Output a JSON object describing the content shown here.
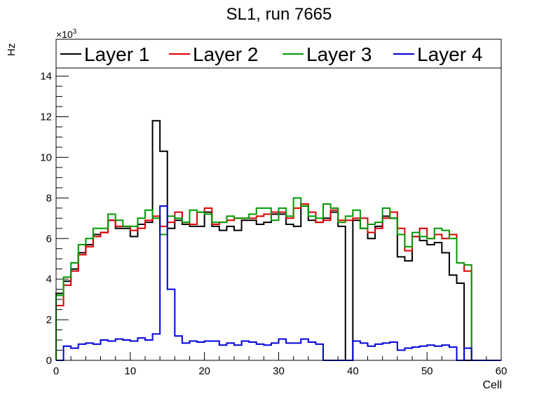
{
  "chart_data": {
    "type": "line",
    "style": "step-histogram",
    "title": "SL1, run 7665",
    "xlabel": "Cell",
    "ylabel": "Hz",
    "y_multiplier_label": "×10",
    "y_multiplier_exp": "3",
    "xlim": [
      0,
      60
    ],
    "ylim": [
      0,
      14.4
    ],
    "y_units": "thousands of Hz",
    "x_ticks": [
      "0",
      "10",
      "20",
      "30",
      "40",
      "50",
      "60"
    ],
    "y_ticks": [
      "0",
      "2",
      "4",
      "6",
      "8",
      "10",
      "12",
      "14"
    ],
    "grid": false,
    "legend_position": "top",
    "series": [
      {
        "name": "Layer 1",
        "color": "#000000",
        "values": [
          3.3,
          3.9,
          4.5,
          5.3,
          5.7,
          6.2,
          6.3,
          6.9,
          6.5,
          6.5,
          6.1,
          6.7,
          6.8,
          11.8,
          10.3,
          6.5,
          6.9,
          6.7,
          6.6,
          6.6,
          7.3,
          6.6,
          6.4,
          6.6,
          6.4,
          6.9,
          6.9,
          6.7,
          6.8,
          7.2,
          7.2,
          6.7,
          6.6,
          7.6,
          6.9,
          6.8,
          7.0,
          7.3,
          6.6,
          0,
          6.9,
          6.5,
          6.0,
          6.6,
          7.1,
          7.0,
          5.1,
          4.9,
          6.1,
          5.9,
          5.7,
          5.8,
          5.3,
          4.2,
          3.8,
          0,
          0,
          0,
          0,
          0
        ]
      },
      {
        "name": "Layer 2",
        "color": "#dd0000",
        "values": [
          2.7,
          3.7,
          4.4,
          5.2,
          5.6,
          6.1,
          6.3,
          6.9,
          6.6,
          6.6,
          6.4,
          6.5,
          6.9,
          7.1,
          6.6,
          6.8,
          7.3,
          6.8,
          6.7,
          7.3,
          7.5,
          6.7,
          6.8,
          6.9,
          7.0,
          7.0,
          7.0,
          7.1,
          7.2,
          7.3,
          7.3,
          7.0,
          7.5,
          7.7,
          7.3,
          6.8,
          6.9,
          7.4,
          6.9,
          6.9,
          7.0,
          7.0,
          6.3,
          6.5,
          7.0,
          7.3,
          6.5,
          5.4,
          6.1,
          6.5,
          6.0,
          6.2,
          6.0,
          6.2,
          4.8,
          4.4,
          0,
          0,
          0,
          0
        ]
      },
      {
        "name": "Layer 3",
        "color": "#009900",
        "values": [
          3.2,
          4.1,
          4.8,
          5.7,
          6.0,
          6.5,
          6.5,
          7.2,
          6.9,
          6.6,
          6.6,
          7.0,
          7.4,
          7.0,
          6.2,
          7.1,
          7.0,
          6.8,
          7.4,
          7.3,
          7.2,
          6.8,
          6.8,
          7.1,
          7.0,
          7.0,
          7.2,
          7.5,
          7.5,
          6.9,
          7.5,
          7.1,
          8.0,
          7.6,
          7.1,
          7.0,
          7.7,
          7.5,
          6.8,
          7.1,
          7.4,
          6.5,
          6.7,
          6.8,
          7.5,
          7.0,
          6.2,
          5.6,
          6.3,
          6.1,
          6.0,
          6.5,
          6.4,
          6.0,
          4.8,
          4.7,
          0,
          0,
          0,
          0
        ]
      },
      {
        "name": "Layer 4",
        "color": "#0000dd",
        "values": [
          0,
          0.7,
          0.6,
          0.8,
          0.85,
          0.8,
          1.0,
          0.95,
          1.05,
          1.0,
          0.95,
          1.1,
          1.0,
          1.3,
          7.6,
          3.5,
          1.2,
          0.85,
          0.95,
          0.9,
          0.95,
          0.95,
          0.75,
          0.85,
          0.75,
          0.95,
          0.9,
          0.8,
          0.75,
          0.85,
          1.05,
          0.85,
          0.85,
          1.05,
          0.9,
          0.8,
          0,
          0,
          0,
          0,
          0.95,
          0.85,
          0.7,
          0.8,
          0.85,
          0.9,
          0.5,
          0.6,
          0.65,
          0.7,
          0.75,
          0.7,
          0.75,
          0.65,
          0,
          0.6,
          0,
          0,
          0,
          0
        ]
      }
    ]
  }
}
